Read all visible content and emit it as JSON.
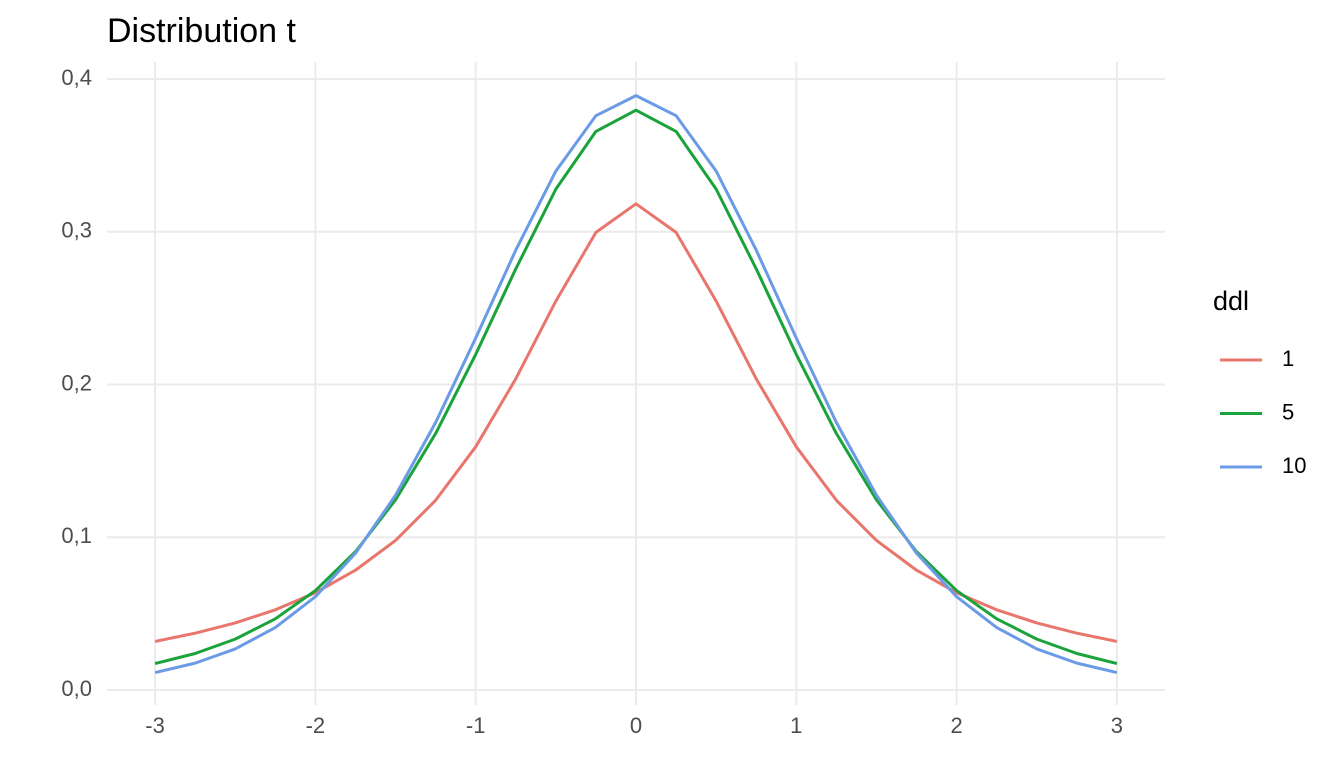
{
  "chart_data": {
    "type": "line",
    "title": "Distribution t",
    "x": [
      -3,
      -2.75,
      -2.5,
      -2.25,
      -2,
      -1.75,
      -1.5,
      -1.25,
      -1,
      -0.75,
      -0.5,
      -0.25,
      0,
      0.25,
      0.5,
      0.75,
      1,
      1.25,
      1.5,
      1.75,
      2,
      2.25,
      2.5,
      2.75,
      3
    ],
    "series": [
      {
        "name": "1",
        "color": "#e8766d",
        "values": [
          0.0318,
          0.0372,
          0.0439,
          0.0525,
          0.0637,
          0.0784,
          0.0979,
          0.1242,
          0.1592,
          0.2037,
          0.2546,
          0.2996,
          0.3183,
          0.2996,
          0.2546,
          0.2037,
          0.1592,
          0.1242,
          0.0979,
          0.0784,
          0.0637,
          0.0525,
          0.0439,
          0.0372,
          0.0318
        ]
      },
      {
        "name": "5",
        "color": "#1aa33a",
        "values": [
          0.0173,
          0.0239,
          0.0333,
          0.0466,
          0.0651,
          0.0905,
          0.1245,
          0.1679,
          0.2197,
          0.2757,
          0.3279,
          0.3657,
          0.3796,
          0.3657,
          0.3279,
          0.2757,
          0.2197,
          0.1679,
          0.1245,
          0.0905,
          0.0651,
          0.0466,
          0.0333,
          0.0239,
          0.0173
        ]
      },
      {
        "name": "10",
        "color": "#6b9be6",
        "values": [
          0.0114,
          0.0176,
          0.0269,
          0.0409,
          0.0611,
          0.0895,
          0.1275,
          0.1751,
          0.2304,
          0.288,
          0.3397,
          0.376,
          0.3891,
          0.376,
          0.3397,
          0.288,
          0.2304,
          0.1751,
          0.1275,
          0.0895,
          0.0611,
          0.0409,
          0.0269,
          0.0176,
          0.0114
        ]
      }
    ],
    "xlim": [
      -3.3,
      3.3
    ],
    "xticks": [
      -3,
      -2,
      -1,
      0,
      1,
      2,
      3
    ],
    "ylim": [
      0,
      0.4
    ],
    "yticks": [
      {
        "value": 0,
        "label": "0,0"
      },
      {
        "value": 0.1,
        "label": "0,1"
      },
      {
        "value": 0.2,
        "label": "0,2"
      },
      {
        "value": 0.3,
        "label": "0,3"
      },
      {
        "value": 0.4,
        "label": "0,4"
      }
    ],
    "grid": true,
    "legend_title": "ddl",
    "legend": "right"
  }
}
